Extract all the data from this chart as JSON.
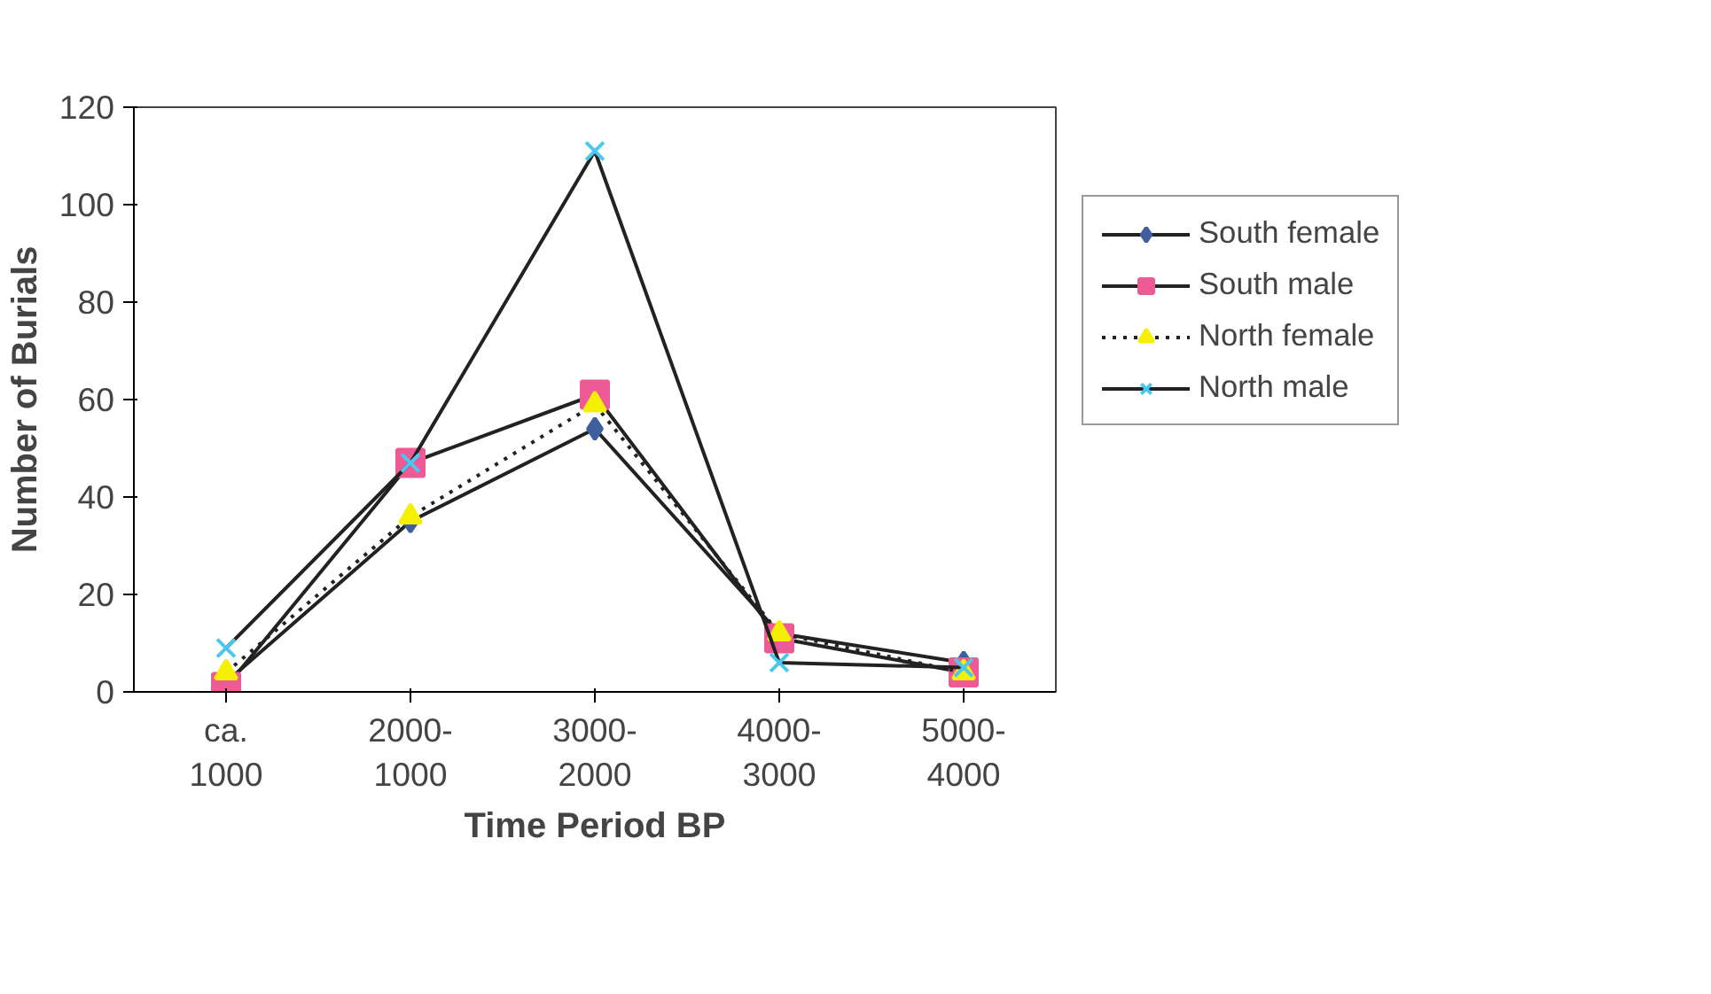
{
  "chart_data": {
    "type": "line",
    "xlabel": "Time Period BP",
    "ylabel": "Number of Burials",
    "categories": [
      "ca. 1000",
      "2000-1000",
      "3000-2000",
      "4000-3000",
      "5000-4000"
    ],
    "ylim": [
      0,
      120
    ],
    "yticks": [
      0,
      20,
      40,
      60,
      80,
      100,
      120
    ],
    "grid": false,
    "legend": "right",
    "series": [
      {
        "name": "South female",
        "color": "#3f5f9e",
        "marker": "diamond",
        "line_style": "solid",
        "values": [
          2,
          35,
          54,
          12,
          6
        ]
      },
      {
        "name": "South male",
        "color": "#ee5a96",
        "marker": "square",
        "line_style": "solid",
        "values": [
          1,
          47,
          61,
          11,
          4
        ]
      },
      {
        "name": "North female",
        "color": "#f5f000",
        "marker": "triangle",
        "line_style": "dotted",
        "values": [
          4,
          36,
          59,
          12,
          4
        ]
      },
      {
        "name": "North male",
        "color": "#4cc8ee",
        "marker": "cross",
        "line_style": "solid",
        "values": [
          9,
          47,
          111,
          6,
          5
        ]
      }
    ]
  }
}
